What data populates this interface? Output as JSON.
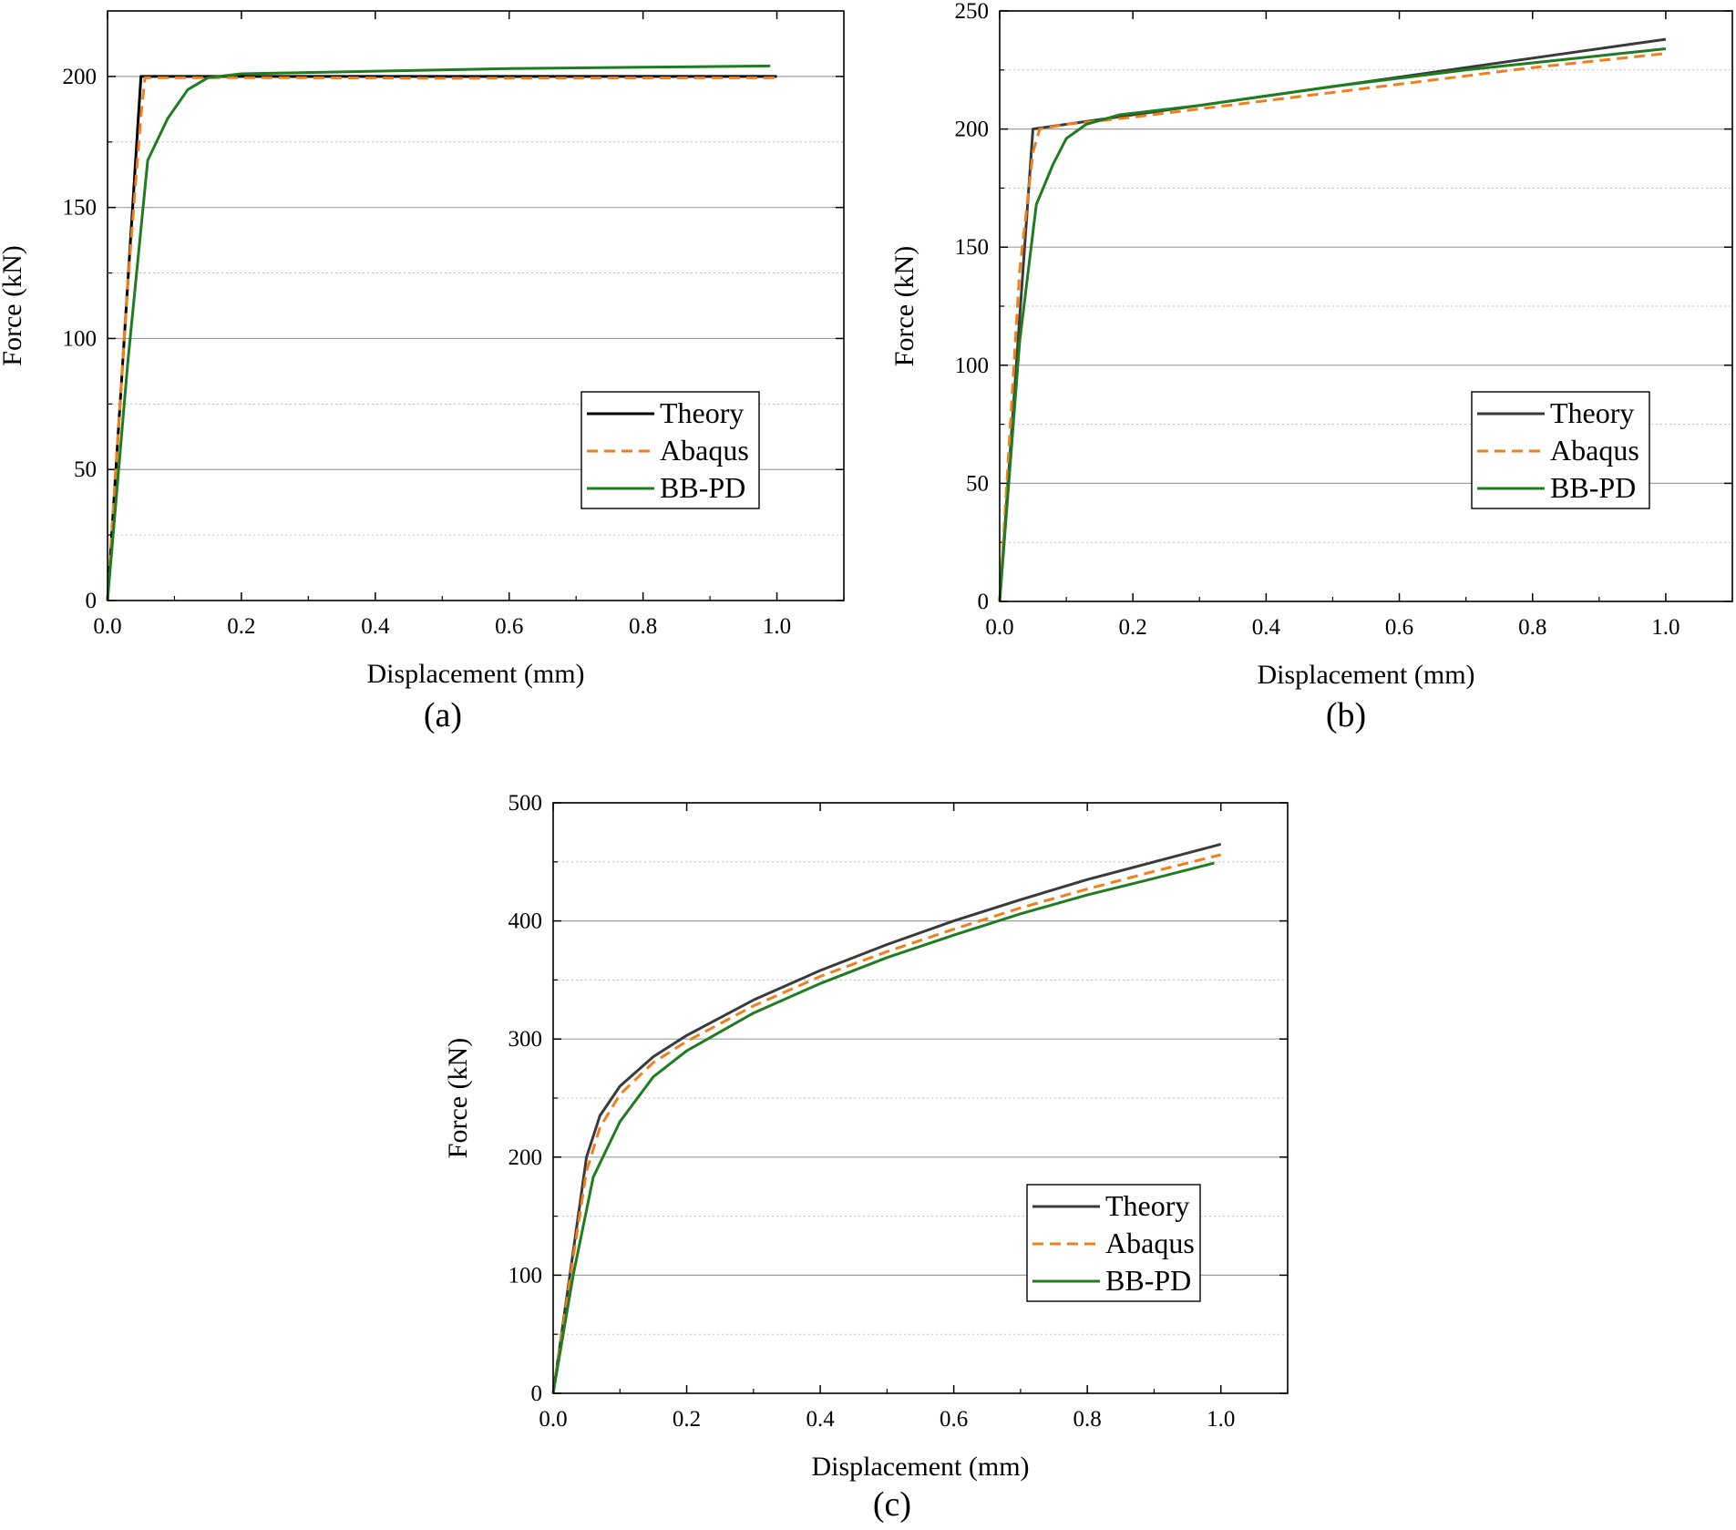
{
  "chart_data": [
    {
      "type": "line",
      "caption": "(a)",
      "xlabel": "Displacement (mm)",
      "ylabel": "Force (kN)",
      "xlim": [
        0,
        1.1
      ],
      "ylim": [
        0,
        225
      ],
      "xticks": [
        0,
        0.2,
        0.4,
        0.6,
        0.8,
        1.0
      ],
      "xtick_labels": [
        "0.0",
        "0.2",
        "0.4",
        "0.6",
        "0.8",
        "1.0"
      ],
      "yticks": [
        0,
        50,
        100,
        150,
        200
      ],
      "ytick_labels": [
        "0",
        "50",
        "100",
        "150",
        "200"
      ],
      "minor_grid": [
        25,
        75,
        125,
        175
      ],
      "grid": true,
      "legend_position": "right-middle",
      "series": [
        {
          "name": "Theory",
          "color": "#000000",
          "dash": "solid",
          "x": [
            0,
            0.05,
            1.0
          ],
          "y": [
            0,
            200,
            200
          ]
        },
        {
          "name": "Abaqus",
          "color": "#f07f1b",
          "dash": "dashed",
          "x": [
            0,
            0.03,
            0.05,
            0.056,
            0.1,
            0.3,
            0.5,
            0.7,
            1.0
          ],
          "y": [
            0,
            120,
            185,
            199.5,
            199.5,
            199.5,
            199.3,
            199.4,
            199.5
          ]
        },
        {
          "name": "BB-PD",
          "color": "#1e7d1e",
          "dash": "solid",
          "x": [
            0,
            0.03,
            0.06,
            0.09,
            0.12,
            0.15,
            0.2,
            0.4,
            0.6,
            0.8,
            0.99
          ],
          "y": [
            0,
            90,
            168,
            184,
            195,
            199.5,
            201,
            202,
            203,
            203.5,
            204
          ]
        }
      ]
    },
    {
      "type": "line",
      "caption": "(b)",
      "xlabel": "Displacement (mm)",
      "ylabel": "Force (kN)",
      "xlim": [
        0,
        1.1
      ],
      "ylim": [
        0,
        250
      ],
      "xticks": [
        0,
        0.2,
        0.4,
        0.6,
        0.8,
        1.0
      ],
      "xtick_labels": [
        "0.0",
        "0.2",
        "0.4",
        "0.6",
        "0.8",
        "1.0"
      ],
      "yticks": [
        0,
        50,
        100,
        150,
        200,
        250
      ],
      "ytick_labels": [
        "0",
        "50",
        "100",
        "150",
        "200",
        "250"
      ],
      "minor_grid": [
        25,
        75,
        125,
        175,
        225
      ],
      "grid": true,
      "legend_position": "right-middle",
      "series": [
        {
          "name": "Theory",
          "color": "#3a3a3a",
          "dash": "solid",
          "x": [
            0,
            0.05,
            0.2,
            0.4,
            0.6,
            0.8,
            1.0
          ],
          "y": [
            0,
            200,
            206,
            214,
            222,
            230,
            238
          ]
        },
        {
          "name": "Abaqus",
          "color": "#f07f1b",
          "dash": "dashed",
          "x": [
            0,
            0.03,
            0.05,
            0.06,
            0.1,
            0.2,
            0.4,
            0.6,
            0.8,
            1.0
          ],
          "y": [
            0,
            140,
            190,
            200,
            202,
            205,
            212,
            219,
            226,
            232
          ]
        },
        {
          "name": "BB-PD",
          "color": "#1e7d1e",
          "dash": "solid",
          "x": [
            0,
            0.03,
            0.055,
            0.08,
            0.1,
            0.13,
            0.18,
            0.3,
            0.5,
            0.7,
            0.9,
            1.0
          ],
          "y": [
            0,
            110,
            168,
            185,
            196,
            202,
            206,
            210,
            218,
            225,
            231,
            234
          ]
        }
      ]
    },
    {
      "type": "line",
      "caption": "(c)",
      "xlabel": "Displacement (mm)",
      "ylabel": "Force (kN)",
      "xlim": [
        0,
        1.1
      ],
      "ylim": [
        0,
        500
      ],
      "xticks": [
        0,
        0.2,
        0.4,
        0.6,
        0.8,
        1.0
      ],
      "xtick_labels": [
        "0.0",
        "0.2",
        "0.4",
        "0.6",
        "0.8",
        "1.0"
      ],
      "yticks": [
        0,
        100,
        200,
        300,
        400,
        500
      ],
      "ytick_labels": [
        "0",
        "100",
        "200",
        "300",
        "400",
        "500"
      ],
      "minor_grid": [
        50,
        150,
        250,
        350,
        450
      ],
      "grid": true,
      "legend_position": "right-lower",
      "series": [
        {
          "name": "Theory",
          "color": "#3a3a3a",
          "dash": "solid",
          "x": [
            0,
            0.03,
            0.05,
            0.07,
            0.1,
            0.15,
            0.2,
            0.3,
            0.4,
            0.5,
            0.6,
            0.7,
            0.8,
            0.9,
            1.0
          ],
          "y": [
            0,
            120,
            200,
            235,
            260,
            285,
            303,
            333,
            358,
            380,
            400,
            418,
            435,
            450,
            465
          ]
        },
        {
          "name": "Abaqus",
          "color": "#f07f1b",
          "dash": "dashed",
          "x": [
            0,
            0.03,
            0.05,
            0.07,
            0.1,
            0.15,
            0.2,
            0.3,
            0.4,
            0.5,
            0.6,
            0.7,
            0.8,
            0.9,
            1.0
          ],
          "y": [
            0,
            115,
            188,
            225,
            253,
            280,
            298,
            328,
            353,
            374,
            393,
            411,
            427,
            442,
            456
          ]
        },
        {
          "name": "BB-PD",
          "color": "#1e7d1e",
          "dash": "solid",
          "x": [
            0,
            0.03,
            0.06,
            0.1,
            0.15,
            0.2,
            0.3,
            0.4,
            0.5,
            0.6,
            0.7,
            0.8,
            0.9,
            0.99
          ],
          "y": [
            0,
            100,
            183,
            230,
            268,
            290,
            322,
            347,
            369,
            388,
            406,
            422,
            436,
            449
          ]
        }
      ]
    }
  ]
}
